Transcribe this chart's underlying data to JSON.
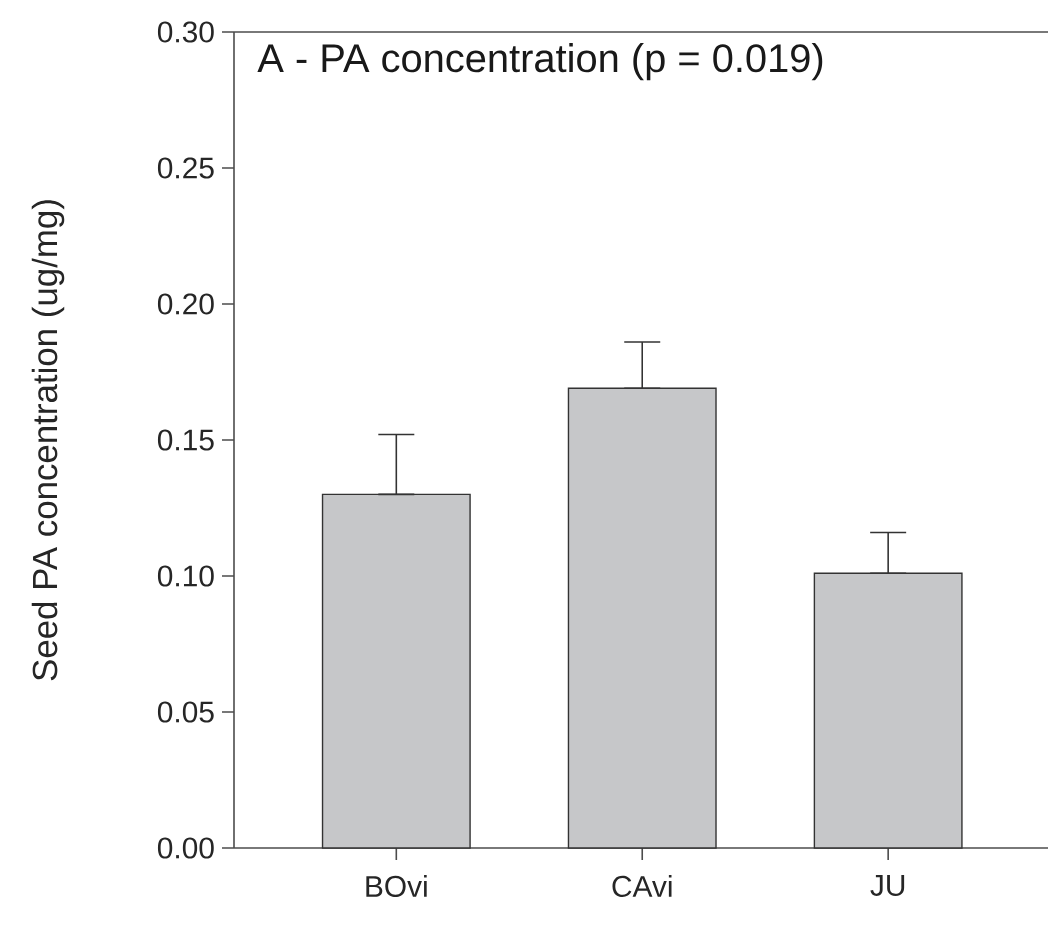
{
  "chart_data": {
    "type": "bar",
    "title": "A - PA concentration (p = 0.019)",
    "ylabel": "Seed PA concentration (ug/mg)",
    "categories": [
      "BOvi",
      "CAvi",
      "JU"
    ],
    "values": [
      0.13,
      0.169,
      0.101
    ],
    "errors": [
      [
        0.13,
        0.152
      ],
      [
        0.169,
        0.186
      ],
      [
        0.101,
        0.116
      ]
    ],
    "color": "#c6c7c9",
    "ylim": [
      0,
      0.3
    ],
    "yticks": [
      {
        "value": 0,
        "label": "0.00"
      },
      {
        "value": 0.05,
        "label": "0.05"
      },
      {
        "value": 0.1,
        "label": "0.10"
      },
      {
        "value": 0.15,
        "label": "0.15"
      },
      {
        "value": 0.2,
        "label": "0.20"
      },
      {
        "value": 0.25,
        "label": "0.25"
      },
      {
        "value": 0.3,
        "label": "0.30"
      }
    ],
    "grid": false
  }
}
